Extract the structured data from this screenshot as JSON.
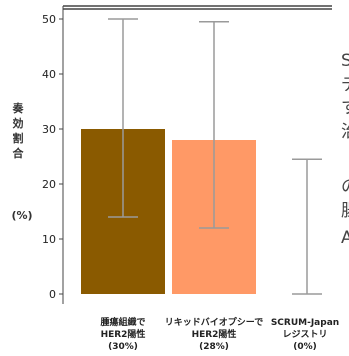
{
  "chart_data": {
    "type": "bar",
    "ylabel_chars": [
      "奏",
      "効",
      "割",
      "合"
    ],
    "ylabel_unit": "(%)",
    "ylim": [
      0,
      50
    ],
    "yticks": [
      0,
      10,
      20,
      30,
      40,
      50
    ],
    "categories": [
      {
        "lines": [
          "腫瘍組織で",
          "HER2陽性",
          "(30%)"
        ]
      },
      {
        "lines": [
          "リキッドバイオプシーで",
          "HER2陽性",
          "(28%)"
        ]
      },
      {
        "lines": [
          "SCRUM-Japan",
          "レジストリ",
          "(0%)"
        ]
      }
    ],
    "values": [
      30,
      28,
      0
    ],
    "error_low": [
      14,
      12,
      0
    ],
    "error_high": [
      50,
      49.5,
      24.5
    ],
    "colors": [
      "#8a5a00",
      "#ff9966",
      "#ffffff"
    ],
    "error_color": "#9a9a9a",
    "axis_color": "#444444"
  },
  "side_text": [
    "S",
    "デ",
    "す",
    "治",
    "",
    "の",
    "腸",
    "A"
  ]
}
